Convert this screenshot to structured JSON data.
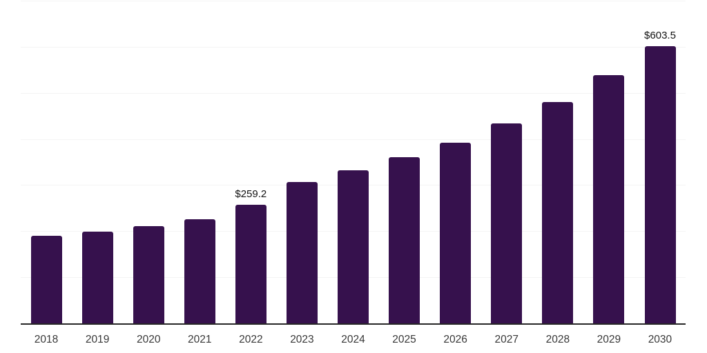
{
  "chart_data": {
    "type": "bar",
    "title": "",
    "xlabel": "",
    "ylabel": "",
    "categories": [
      "2018",
      "2019",
      "2020",
      "2021",
      "2022",
      "2023",
      "2024",
      "2025",
      "2026",
      "2027",
      "2028",
      "2029",
      "2030"
    ],
    "values": [
      191.4,
      200.4,
      212.4,
      227.3,
      259.2,
      308.1,
      333.5,
      362.0,
      393.4,
      435.2,
      481.6,
      540.0,
      603.5
    ],
    "data_labels": [
      {
        "category": "2022",
        "text": "$259.2"
      },
      {
        "category": "2030",
        "text": "$603.5"
      }
    ],
    "ylim": [
      0,
      700
    ],
    "gridline_step": 100,
    "grid": true,
    "y_axis_labels_visible": false,
    "legend_position": "none",
    "colors": {
      "bar": "#36114D",
      "axis_line": "#262626",
      "gridline": "#F4F4F4",
      "tick_label": "#383838",
      "data_label": "#111111",
      "background": "#FFFFFF"
    }
  }
}
